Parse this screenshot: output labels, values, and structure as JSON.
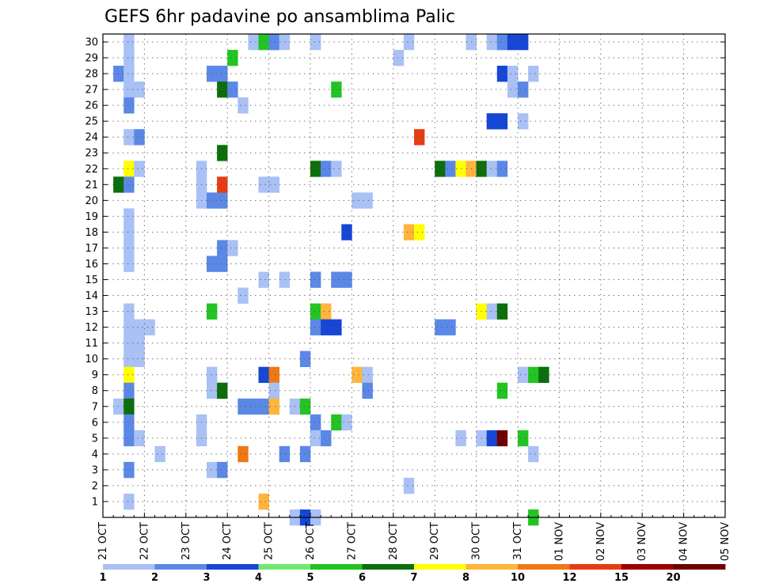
{
  "chart_data": {
    "type": "heatmap",
    "title": "GEFS 6hr padavine po ansamblima Palic",
    "x_tick_labels": [
      "21 OCT",
      "22 OCT",
      "23 OCT",
      "24 OCT",
      "25 OCT",
      "26 OCT",
      "27 OCT",
      "28 OCT",
      "29 OCT",
      "30 OCT",
      "31 OCT",
      "01 NOV",
      "02 NOV",
      "03 NOV",
      "04 NOV",
      "05 NOV"
    ],
    "y_tick_labels": [
      "1",
      "2",
      "3",
      "4",
      "5",
      "6",
      "7",
      "8",
      "9",
      "10",
      "11",
      "12",
      "13",
      "14",
      "15",
      "16",
      "17",
      "18",
      "19",
      "20",
      "21",
      "22",
      "23",
      "24",
      "25",
      "26",
      "27",
      "28",
      "29",
      "30"
    ],
    "xlim": [
      0,
      60
    ],
    "ylim": [
      0,
      30.5
    ],
    "grid": true,
    "colorbar": {
      "labels": [
        "1",
        "2",
        "3",
        "4",
        "5",
        "6",
        "7",
        "8",
        "10",
        "12",
        "15",
        "20"
      ],
      "colors": [
        "#a9c1f5",
        "#5b88e6",
        "#1646d6",
        "#72e872",
        "#22c422",
        "#0c6e0c",
        "#ffff00",
        "#ffb43c",
        "#f07814",
        "#e63c14",
        "#a00000",
        "#6e0000"
      ]
    },
    "cells": [
      [
        2,
        30,
        1
      ],
      [
        2,
        29,
        1
      ],
      [
        1,
        28,
        2
      ],
      [
        2,
        28,
        1
      ],
      [
        2,
        27,
        1
      ],
      [
        3,
        27,
        1
      ],
      [
        2,
        26,
        2
      ],
      [
        2,
        24,
        1
      ],
      [
        3,
        24,
        2
      ],
      [
        2,
        22,
        7
      ],
      [
        3,
        22,
        1
      ],
      [
        1,
        21,
        6
      ],
      [
        2,
        21,
        2
      ],
      [
        2,
        19,
        1
      ],
      [
        2,
        18,
        1
      ],
      [
        2,
        17,
        1
      ],
      [
        2,
        16,
        1
      ],
      [
        2,
        13,
        1
      ],
      [
        2,
        12,
        1
      ],
      [
        3,
        12,
        1
      ],
      [
        4,
        12,
        1
      ],
      [
        2,
        11,
        1
      ],
      [
        3,
        11,
        1
      ],
      [
        2,
        10,
        1
      ],
      [
        3,
        10,
        1
      ],
      [
        2,
        9,
        7
      ],
      [
        2,
        8,
        2
      ],
      [
        1,
        7,
        1
      ],
      [
        2,
        7,
        6
      ],
      [
        2,
        6,
        2
      ],
      [
        2,
        5,
        2
      ],
      [
        3,
        5,
        1
      ],
      [
        2,
        3,
        2
      ],
      [
        2,
        1,
        1
      ],
      [
        5,
        4,
        1
      ],
      [
        9,
        21,
        1
      ],
      [
        9,
        22,
        1
      ],
      [
        9,
        20,
        1
      ],
      [
        9,
        6,
        1
      ],
      [
        9,
        5,
        1
      ],
      [
        10,
        28,
        2
      ],
      [
        11,
        28,
        2
      ],
      [
        10,
        20,
        2
      ],
      [
        11,
        20,
        2
      ],
      [
        10,
        16,
        2
      ],
      [
        11,
        16,
        2
      ],
      [
        10,
        9,
        1
      ],
      [
        10,
        8,
        1
      ],
      [
        10,
        3,
        1
      ],
      [
        11,
        3,
        2
      ],
      [
        10,
        13,
        5
      ],
      [
        11,
        27,
        6
      ],
      [
        12,
        27,
        2
      ],
      [
        11,
        21,
        10
      ],
      [
        11,
        23,
        6
      ],
      [
        11,
        17,
        2
      ],
      [
        12,
        17,
        1
      ],
      [
        11,
        8,
        6
      ],
      [
        12,
        29,
        5
      ],
      [
        13,
        26,
        1
      ],
      [
        13,
        14,
        1
      ],
      [
        13,
        7,
        2
      ],
      [
        14,
        7,
        2
      ],
      [
        13,
        4,
        9
      ],
      [
        14,
        30,
        1
      ],
      [
        15,
        30,
        5
      ],
      [
        16,
        30,
        2
      ],
      [
        17,
        30,
        1
      ],
      [
        15,
        21,
        1
      ],
      [
        16,
        21,
        1
      ],
      [
        15,
        15,
        1
      ],
      [
        17,
        15,
        1
      ],
      [
        15,
        9,
        3
      ],
      [
        16,
        9,
        9
      ],
      [
        16,
        8,
        1
      ],
      [
        15,
        7,
        2
      ],
      [
        16,
        7,
        8
      ],
      [
        15,
        1,
        8
      ],
      [
        17,
        4,
        2
      ],
      [
        18,
        0,
        1
      ],
      [
        18,
        7,
        1
      ],
      [
        19,
        7,
        5
      ],
      [
        19,
        10,
        2
      ],
      [
        20,
        30,
        1
      ],
      [
        22,
        27,
        5
      ],
      [
        20,
        22,
        6
      ],
      [
        21,
        22,
        2
      ],
      [
        22,
        22,
        1
      ],
      [
        20,
        15,
        2
      ],
      [
        22,
        15,
        2
      ],
      [
        23,
        15,
        2
      ],
      [
        20,
        13,
        5
      ],
      [
        21,
        13,
        8
      ],
      [
        20,
        12,
        2
      ],
      [
        21,
        12,
        3
      ],
      [
        22,
        12,
        3
      ],
      [
        20,
        6,
        2
      ],
      [
        22,
        6,
        5
      ],
      [
        23,
        6,
        1
      ],
      [
        20,
        5,
        1
      ],
      [
        21,
        5,
        2
      ],
      [
        19,
        4,
        2
      ],
      [
        19,
        0,
        3
      ],
      [
        20,
        0,
        1
      ],
      [
        23,
        18,
        3
      ],
      [
        24,
        20,
        1
      ],
      [
        25,
        20,
        1
      ],
      [
        24,
        9,
        8
      ],
      [
        25,
        9,
        1
      ],
      [
        25,
        8,
        2
      ],
      [
        29,
        30,
        1
      ],
      [
        28,
        29,
        1
      ],
      [
        29,
        18,
        8
      ],
      [
        30,
        18,
        7
      ],
      [
        30,
        24,
        10
      ],
      [
        29,
        2,
        1
      ],
      [
        32,
        22,
        6
      ],
      [
        33,
        22,
        2
      ],
      [
        34,
        22,
        7
      ],
      [
        35,
        22,
        8
      ],
      [
        36,
        22,
        6
      ],
      [
        32,
        12,
        2
      ],
      [
        33,
        12,
        2
      ],
      [
        34,
        5,
        1
      ],
      [
        35,
        30,
        1
      ],
      [
        37,
        30,
        1
      ],
      [
        38,
        30,
        2
      ],
      [
        39,
        30,
        3
      ],
      [
        40,
        30,
        3
      ],
      [
        38,
        28,
        3
      ],
      [
        39,
        28,
        1
      ],
      [
        41,
        28,
        1
      ],
      [
        39,
        27,
        1
      ],
      [
        40,
        27,
        2
      ],
      [
        37,
        25,
        3
      ],
      [
        38,
        25,
        3
      ],
      [
        40,
        25,
        1
      ],
      [
        37,
        22,
        1
      ],
      [
        38,
        22,
        2
      ],
      [
        36,
        13,
        7
      ],
      [
        37,
        13,
        1
      ],
      [
        38,
        13,
        6
      ],
      [
        38,
        8,
        5
      ],
      [
        36,
        5,
        1
      ],
      [
        37,
        5,
        3
      ],
      [
        38,
        5,
        12
      ],
      [
        40,
        5,
        5
      ],
      [
        40,
        9,
        1
      ],
      [
        41,
        9,
        5
      ],
      [
        42,
        9,
        6
      ],
      [
        41,
        4,
        1
      ],
      [
        41,
        0,
        5
      ]
    ]
  }
}
